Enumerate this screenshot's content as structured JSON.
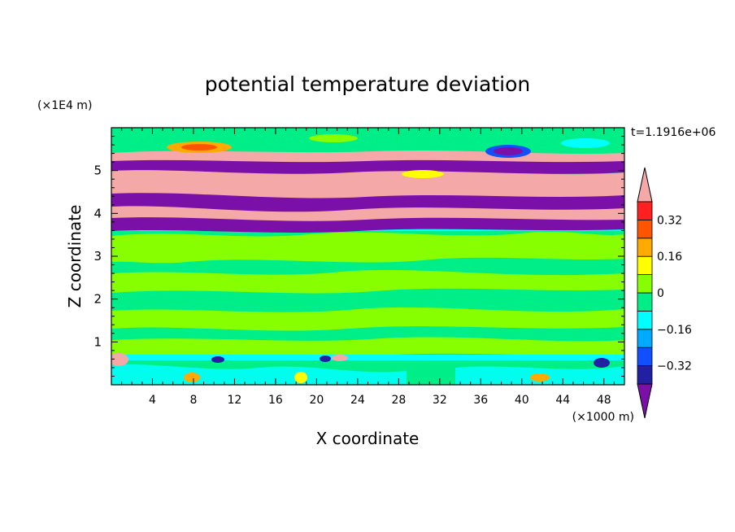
{
  "chart_data": {
    "type": "heatmap",
    "title": "potential temperature deviation",
    "xlabel": "X coordinate",
    "ylabel": "Z coordinate",
    "x_unit": "(×1000 m)",
    "y_unit": "(×1E4 m)",
    "time_label": "t=1.1916e+06",
    "xlim": [
      0,
      50
    ],
    "ylim": [
      0,
      6
    ],
    "x_ticks": [
      "4",
      "8",
      "12",
      "16",
      "20",
      "24",
      "28",
      "32",
      "36",
      "40",
      "44",
      "48"
    ],
    "y_ticks": [
      "1",
      "2",
      "3",
      "4",
      "5"
    ],
    "colorbar": {
      "tick_labels": [
        "0.32",
        "0.16",
        "0",
        "−0.16",
        "−0.32"
      ],
      "tick_values": [
        0.32,
        0.16,
        0,
        -0.16,
        -0.32
      ],
      "levels": [
        -0.4,
        -0.32,
        -0.24,
        -0.16,
        -0.08,
        0,
        0.08,
        0.16,
        0.24,
        0.32,
        0.4
      ],
      "colors": [
        "#7a10a8",
        "#2020a0",
        "#1050ff",
        "#00aaff",
        "#00ffff",
        "#00ee88",
        "#88ff00",
        "#ffff00",
        "#ffaa00",
        "#ff5500",
        "#ff2020",
        "#f4a8a8"
      ],
      "under_color": "#7a10a8",
      "over_color": "#f4a8a8"
    },
    "bands": [
      {
        "zmin": 0.0,
        "zmax": 0.6,
        "dominant": "0",
        "note": "green/cyan with scattered positive/negative patches"
      },
      {
        "zmin": 0.6,
        "zmax": 3.6,
        "dominant": "0 to 0.08",
        "note": "mixture of green and lime"
      },
      {
        "zmin": 3.6,
        "zmax": 3.85,
        "dominant": "-0.4",
        "note": "thin purple layer"
      },
      {
        "zmin": 3.85,
        "zmax": 4.15,
        "dominant": "0.4",
        "note": "pink layer"
      },
      {
        "zmin": 4.15,
        "zmax": 4.45,
        "dominant": "-0.4",
        "note": "purple layer"
      },
      {
        "zmin": 4.45,
        "zmax": 5.0,
        "dominant": "0.4",
        "note": "pink layer"
      },
      {
        "zmin": 5.0,
        "zmax": 5.25,
        "dominant": "-0.4",
        "note": "purple layer"
      },
      {
        "zmin": 5.25,
        "zmax": 6.0,
        "dominant": "0",
        "note": "green with small positive and negative patches"
      }
    ]
  }
}
